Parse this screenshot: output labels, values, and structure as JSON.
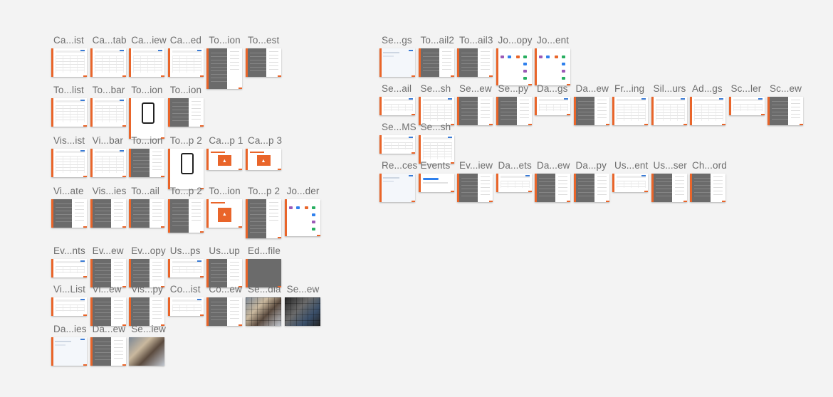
{
  "workspace": {
    "title": ""
  },
  "colors": {
    "accent": "#e9652a",
    "canvas": "#f3f3f3",
    "link": "#3a7bd5"
  },
  "left_board": {
    "rows": [
      {
        "artboards": [
          {
            "label": "Ca...ist",
            "kind": "table"
          },
          {
            "label": "Ca...tab",
            "kind": "table"
          },
          {
            "label": "Ca...iew",
            "kind": "table"
          },
          {
            "label": "Ca...ed",
            "kind": "table"
          },
          {
            "label": "To...ion",
            "kind": "dark"
          },
          {
            "label": "To...est",
            "kind": "dark"
          }
        ]
      },
      {
        "artboards": [
          {
            "label": "To...list",
            "kind": "table"
          },
          {
            "label": "To...bar",
            "kind": "table"
          },
          {
            "label": "To...ion",
            "kind": "phone"
          },
          {
            "label": "To...ion",
            "kind": "dark"
          }
        ]
      },
      {
        "artboards": [
          {
            "label": "Vis...ist",
            "kind": "table"
          },
          {
            "label": "Vi...bar",
            "kind": "table"
          },
          {
            "label": "To...ion",
            "kind": "dark"
          },
          {
            "label": "To...p 2",
            "kind": "phone"
          },
          {
            "label": "Ca...p 1",
            "kind": "promo"
          },
          {
            "label": "Ca...p 3",
            "kind": "promo"
          }
        ]
      },
      {
        "artboards": [
          {
            "label": "Vi...ate",
            "kind": "dark"
          },
          {
            "label": "Vis...ies",
            "kind": "dark"
          },
          {
            "label": "To...ail",
            "kind": "dark"
          },
          {
            "label": "To...p 2",
            "kind": "dark"
          },
          {
            "label": "To...ion",
            "kind": "promo"
          },
          {
            "label": "To...p 2",
            "kind": "dark"
          },
          {
            "label": "Jo...der",
            "kind": "flow"
          }
        ]
      },
      {
        "artboards": [
          {
            "label": "Ev...nts",
            "kind": "table"
          },
          {
            "label": "Ev...ew",
            "kind": "dark"
          },
          {
            "label": "Ev...opy",
            "kind": "dark"
          },
          {
            "label": "Us...ps",
            "kind": "table"
          },
          {
            "label": "Us...up",
            "kind": "dark"
          },
          {
            "label": "Ed...file",
            "kind": "avatar"
          }
        ]
      },
      {
        "artboards": [
          {
            "label": "Vi...List",
            "kind": "table"
          },
          {
            "label": "Vi...ew",
            "kind": "dark"
          },
          {
            "label": "Vis...py",
            "kind": "dark"
          },
          {
            "label": "Co...ist",
            "kind": "table"
          },
          {
            "label": "Co...ew",
            "kind": "dark"
          },
          {
            "label": "Se...dia",
            "kind": "photo"
          },
          {
            "label": "Se...ew",
            "kind": "photo-dark"
          }
        ]
      },
      {
        "artboards": [
          {
            "label": "Da...ies",
            "kind": "light"
          },
          {
            "label": "Da...ew",
            "kind": "dark"
          },
          {
            "label": "Se...iew",
            "kind": "photo-single"
          }
        ]
      }
    ]
  },
  "right_board": {
    "rows": [
      {
        "artboards": [
          {
            "label": "Se...gs",
            "kind": "light"
          },
          {
            "label": "To...ail2",
            "kind": "dark"
          },
          {
            "label": "To...ail3",
            "kind": "dark"
          },
          {
            "label": "Jo...opy",
            "kind": "flow"
          },
          {
            "label": "Jo...ent",
            "kind": "flow"
          }
        ]
      },
      {
        "artboards": [
          {
            "label": "Se...ail",
            "kind": "table"
          },
          {
            "label": "Se...sh",
            "kind": "table"
          },
          {
            "label": "Se...ew",
            "kind": "dark"
          },
          {
            "label": "Se...py",
            "kind": "dark"
          },
          {
            "label": "Da...gs",
            "kind": "table"
          },
          {
            "label": "Da...ew",
            "kind": "dark"
          },
          {
            "label": "Fr...ing",
            "kind": "table"
          },
          {
            "label": "Sil...urs",
            "kind": "table"
          },
          {
            "label": "Ad...gs",
            "kind": "table"
          },
          {
            "label": "Sc...ler",
            "kind": "table"
          },
          {
            "label": "Sc...ew",
            "kind": "dark"
          }
        ]
      },
      {
        "artboards": [
          {
            "label": "Se...MS",
            "kind": "table"
          },
          {
            "label": "Se...sh",
            "kind": "table"
          }
        ]
      },
      {
        "artboards": [
          {
            "label": "Re...ces",
            "kind": "light"
          },
          {
            "label": "Events",
            "kind": "notice"
          },
          {
            "label": "Ev...iew",
            "kind": "dark"
          },
          {
            "label": "Da...ets",
            "kind": "table"
          },
          {
            "label": "Da...ew",
            "kind": "dark"
          },
          {
            "label": "Da...py",
            "kind": "dark"
          },
          {
            "label": "Us...ent",
            "kind": "table"
          },
          {
            "label": "Us...ser",
            "kind": "dark"
          },
          {
            "label": "Ch...ord",
            "kind": "dark"
          }
        ]
      }
    ]
  }
}
